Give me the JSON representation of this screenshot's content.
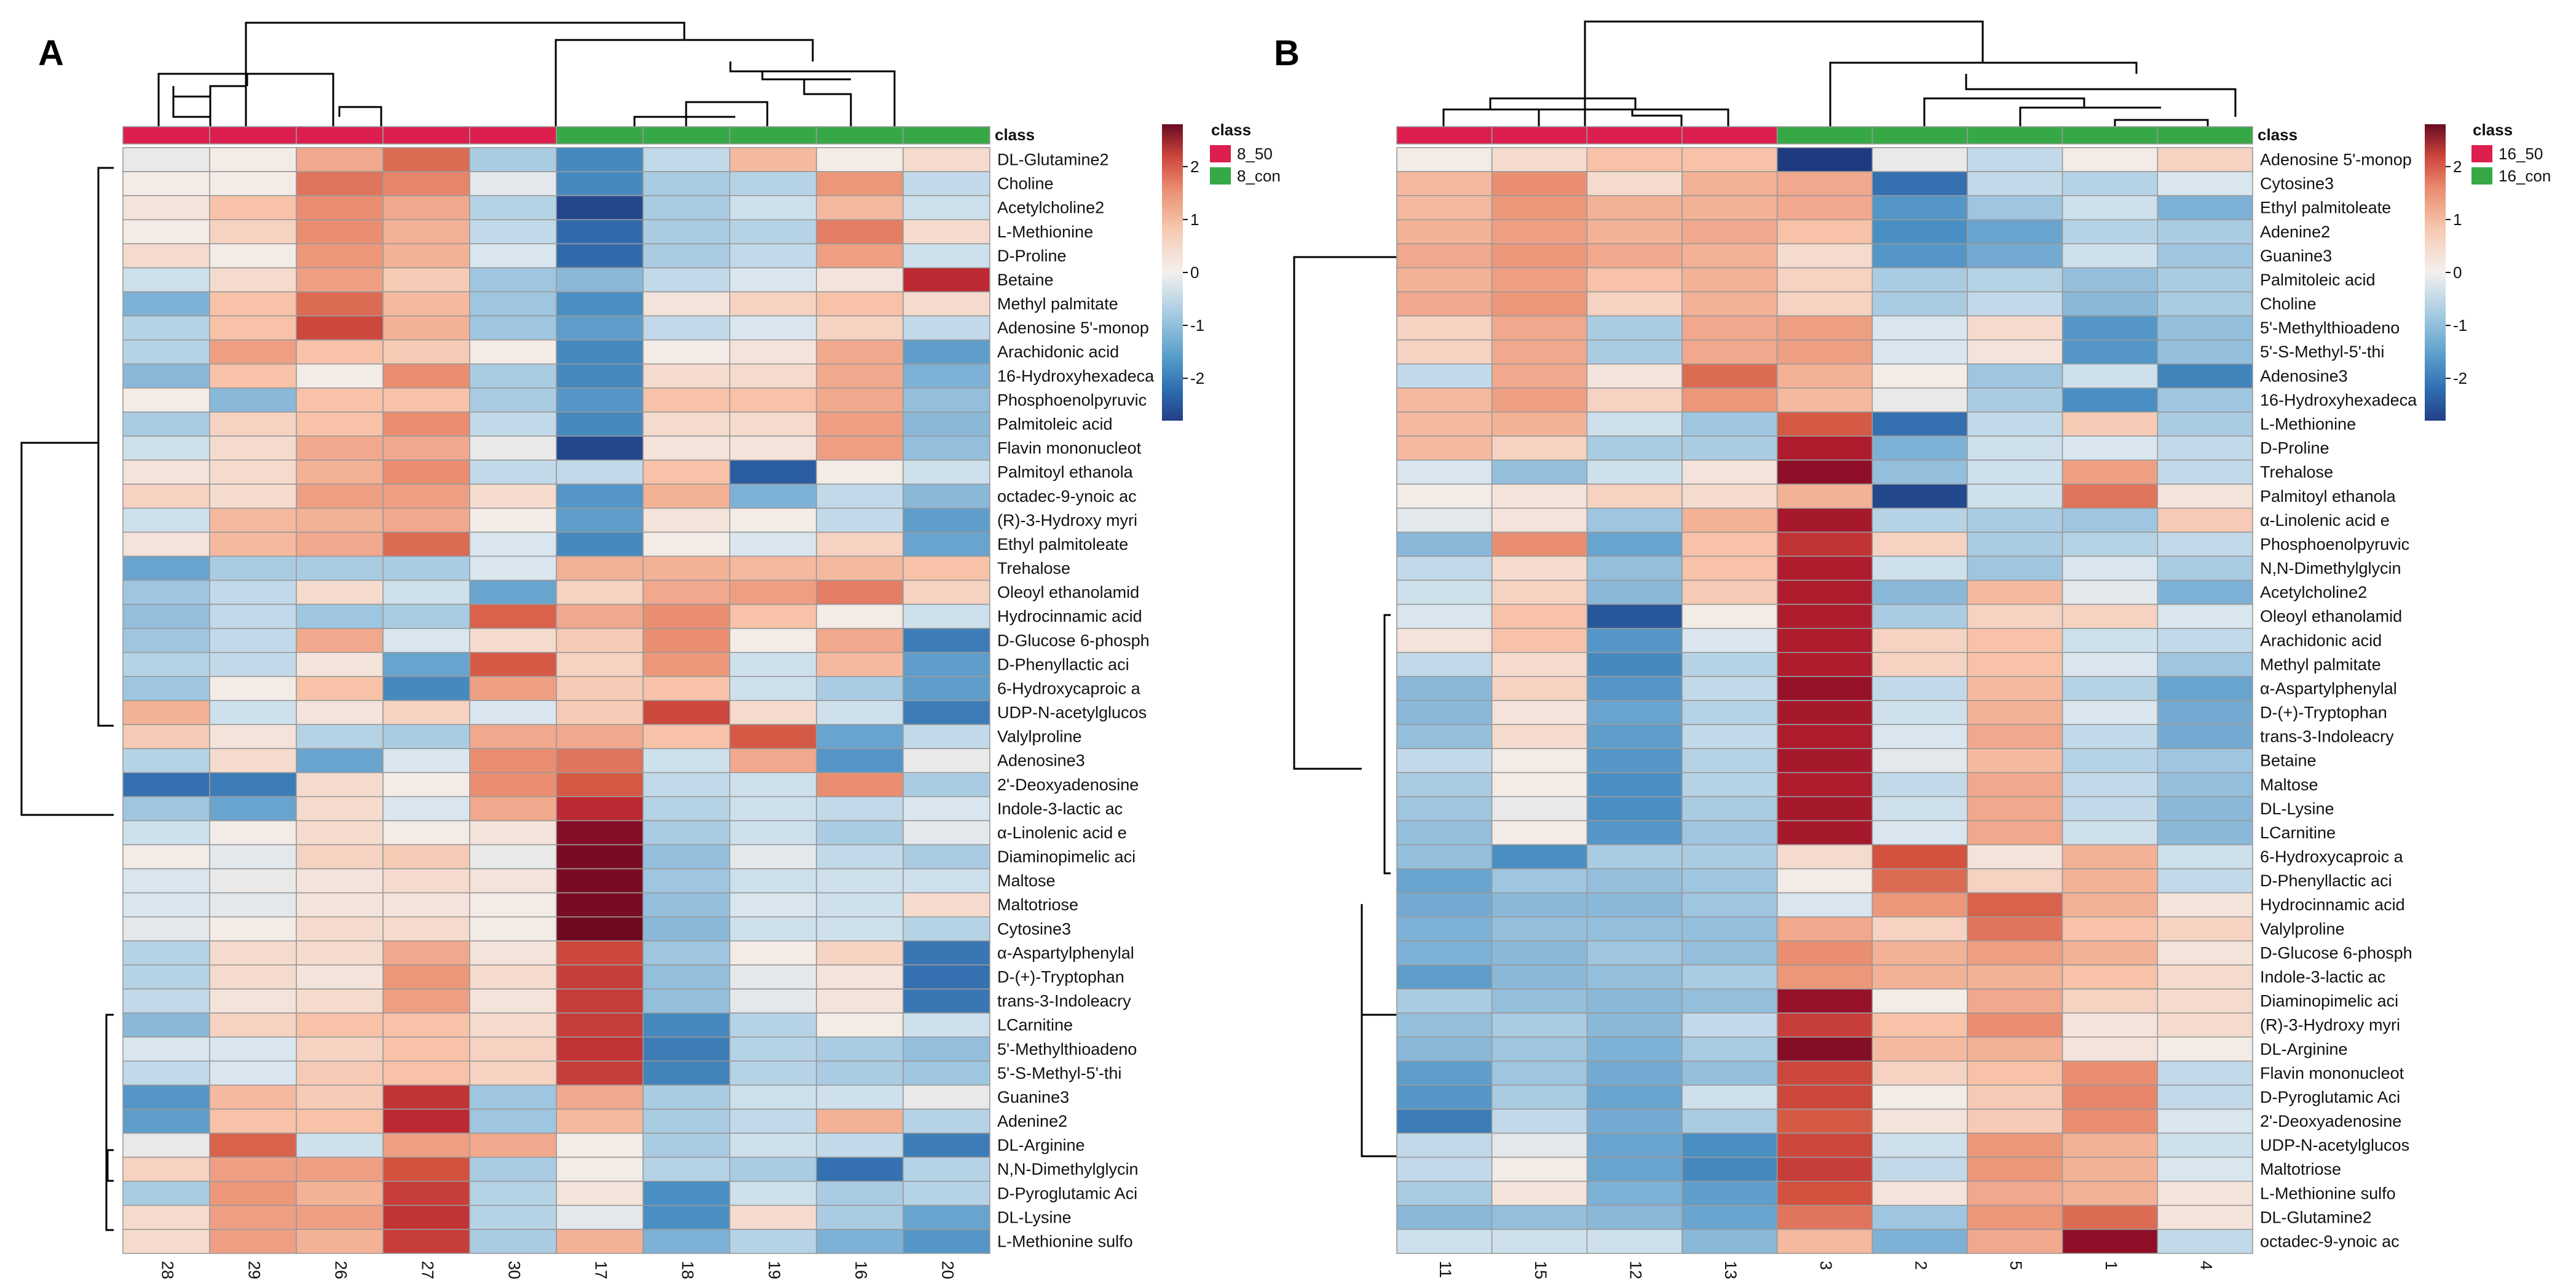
{
  "colors": {
    "scale": [
      "#233f87",
      "#2f6fb2",
      "#5a9fcb",
      "#a6cbe2",
      "#e8eef3",
      "#f7cbb4",
      "#ea8e71",
      "#ce463d",
      "#a8142b",
      "#690b21"
    ],
    "class_8_50": "#dc1f4e",
    "class_8_con": "#36a946",
    "class_16_50": "#dc1f4e",
    "class_16_con": "#36a946",
    "grid": "#9a9a9a"
  },
  "chart_data": [
    {
      "type": "heatmap",
      "panel": "A",
      "class_label": "class",
      "columns": [
        "28",
        "29",
        "26",
        "27",
        "30",
        "17",
        "18",
        "19",
        "16",
        "20"
      ],
      "column_classes": [
        "8_50",
        "8_50",
        "8_50",
        "8_50",
        "8_50",
        "8_con",
        "8_con",
        "8_con",
        "8_con",
        "8_con"
      ],
      "rows": [
        "DL-Glutamine2",
        "Choline",
        "Acetylcholine2",
        "L-Methionine",
        "D-Proline",
        "Betaine",
        "Methyl palmitate",
        "Adenosine 5'-monop",
        "Arachidonic acid",
        "16-Hydroxyhexadeca",
        "Phosphoenolpyruvic",
        "Palmitoleic acid",
        "Flavin mononucleot",
        "Palmitoyl ethanola",
        "octadec-9-ynoic ac",
        "(R)-3-Hydroxy myri",
        "Ethyl palmitoleate",
        "Trehalose",
        "Oleoyl ethanolamid",
        "Hydrocinnamic acid",
        "D-Glucose 6-phosph",
        "D-Phenyllactic aci",
        "6-Hydroxycaproic a",
        "UDP-N-acetylglucos",
        "Valylproline",
        "Adenosine3",
        "2'-Deoxyadenosine",
        "Indole-3-lactic ac",
        "α-Linolenic acid e",
        "Diaminopimelic aci",
        "Maltose",
        "Maltotriose",
        "Cytosine3",
        "α-Aspartylphenylal",
        "D-(+)-Tryptophan",
        "trans-3-Indoleacry",
        "LCarnitine",
        "5'-Methylthioadeno",
        "5'-S-Methyl-5'-thi",
        "Guanine3",
        "Adenine2",
        "DL-Arginine",
        "N,N-Dimethylglycin",
        "D-Pyroglutamic Aci",
        "DL-Lysine",
        "L-Methionine sulfo"
      ],
      "values": [
        [
          0.0,
          0.1,
          0.9,
          1.6,
          -0.6,
          -1.6,
          -0.4,
          0.7,
          0.1,
          0.3
        ],
        [
          0.1,
          0.1,
          1.5,
          1.3,
          -0.1,
          -1.6,
          -0.6,
          -0.5,
          1.1,
          -0.4
        ],
        [
          0.2,
          0.6,
          1.2,
          0.9,
          -0.5,
          -2.6,
          -0.6,
          -0.3,
          0.7,
          -0.3
        ],
        [
          0.1,
          0.4,
          1.2,
          0.8,
          -0.4,
          -2.1,
          -0.6,
          -0.5,
          1.4,
          0.3
        ],
        [
          0.3,
          0.1,
          1.1,
          0.8,
          -0.2,
          -2.1,
          -0.6,
          -0.4,
          1.0,
          -0.3
        ],
        [
          -0.3,
          0.3,
          1.0,
          0.5,
          -0.7,
          -0.9,
          -0.4,
          -0.2,
          0.2,
          2.3
        ],
        [
          -1.0,
          0.6,
          1.6,
          0.7,
          -0.7,
          -1.5,
          0.2,
          0.4,
          0.6,
          0.3
        ],
        [
          -0.5,
          0.6,
          2.0,
          0.8,
          -0.7,
          -1.3,
          -0.4,
          -0.2,
          0.4,
          -0.4
        ],
        [
          -0.5,
          1.0,
          0.6,
          0.5,
          0.1,
          -1.6,
          0.1,
          0.2,
          0.9,
          -1.3
        ],
        [
          -0.9,
          0.6,
          0.1,
          1.2,
          -0.6,
          -1.6,
          0.3,
          0.3,
          0.9,
          -1.0
        ],
        [
          0.1,
          -0.9,
          0.6,
          0.6,
          -0.6,
          -1.4,
          0.6,
          0.6,
          0.9,
          -0.8
        ],
        [
          -0.6,
          0.4,
          0.6,
          1.2,
          -0.4,
          -1.6,
          0.3,
          0.3,
          1.0,
          -0.9
        ],
        [
          -0.3,
          0.3,
          0.9,
          0.9,
          0.0,
          -2.6,
          0.2,
          0.2,
          1.0,
          -0.8
        ],
        [
          0.2,
          0.3,
          0.8,
          1.2,
          -0.4,
          -0.4,
          0.6,
          -2.3,
          0.1,
          -0.3
        ],
        [
          0.4,
          0.3,
          1.0,
          1.0,
          0.3,
          -1.4,
          0.8,
          -1.0,
          -0.4,
          -0.9
        ],
        [
          -0.3,
          0.7,
          0.8,
          0.9,
          0.1,
          -1.3,
          0.2,
          0.1,
          -0.4,
          -1.3
        ],
        [
          0.2,
          0.7,
          0.9,
          1.6,
          -0.2,
          -1.6,
          0.1,
          -0.2,
          0.4,
          -1.2
        ],
        [
          -1.2,
          -0.6,
          -0.6,
          -0.6,
          -0.2,
          0.8,
          0.8,
          0.7,
          0.7,
          0.6
        ],
        [
          -0.7,
          -0.4,
          0.3,
          -0.3,
          -1.2,
          0.4,
          0.9,
          1.0,
          1.4,
          0.4
        ],
        [
          -0.8,
          -0.4,
          -0.7,
          -0.6,
          1.7,
          0.9,
          1.2,
          0.6,
          0.1,
          -0.3
        ],
        [
          -0.7,
          -0.4,
          0.9,
          -0.2,
          0.3,
          0.5,
          1.2,
          0.1,
          0.9,
          -1.8
        ],
        [
          -0.5,
          -0.4,
          0.2,
          -1.2,
          1.8,
          0.4,
          1.1,
          -0.3,
          0.7,
          -1.3
        ],
        [
          -0.7,
          0.1,
          0.6,
          -1.6,
          1.0,
          0.5,
          0.6,
          -0.3,
          -0.6,
          -1.3
        ],
        [
          0.8,
          -0.3,
          0.2,
          0.4,
          -0.2,
          0.5,
          2.0,
          0.3,
          -0.3,
          -1.8
        ],
        [
          0.5,
          0.2,
          -0.5,
          -0.6,
          0.9,
          0.9,
          0.6,
          1.8,
          -1.2,
          -0.4
        ],
        [
          -0.5,
          0.3,
          -1.2,
          -0.2,
          1.2,
          1.5,
          -0.3,
          0.9,
          -1.4,
          0.0
        ],
        [
          -2.0,
          -1.8,
          0.3,
          0.1,
          1.2,
          1.8,
          -0.4,
          -0.3,
          1.2,
          -0.6
        ],
        [
          -0.7,
          -1.2,
          0.3,
          -0.2,
          0.9,
          2.3,
          -0.5,
          -0.3,
          -0.4,
          -0.2
        ],
        [
          -0.3,
          0.1,
          0.3,
          0.1,
          0.2,
          3.0,
          -0.6,
          -0.3,
          -0.6,
          -0.1
        ],
        [
          0.1,
          -0.1,
          0.4,
          0.5,
          0.0,
          3.1,
          -0.8,
          -0.1,
          -0.4,
          -0.6
        ],
        [
          -0.2,
          0.0,
          0.2,
          0.3,
          0.2,
          3.1,
          -0.7,
          -0.3,
          -0.3,
          -0.3
        ],
        [
          -0.2,
          -0.1,
          0.2,
          0.2,
          0.1,
          3.1,
          -0.8,
          -0.2,
          -0.3,
          0.3
        ],
        [
          -0.1,
          0.1,
          0.3,
          0.3,
          0.1,
          3.2,
          -0.9,
          -0.3,
          -0.3,
          -0.5
        ],
        [
          -0.5,
          0.3,
          0.3,
          0.9,
          0.2,
          2.0,
          -0.7,
          0.1,
          0.4,
          -1.9
        ],
        [
          -0.5,
          0.3,
          0.2,
          1.1,
          0.3,
          2.1,
          -0.8,
          -0.1,
          0.2,
          -2.0
        ],
        [
          -0.4,
          0.2,
          0.3,
          1.0,
          0.2,
          2.1,
          -0.8,
          -0.1,
          0.2,
          -1.9
        ],
        [
          -0.9,
          0.4,
          0.6,
          0.6,
          0.3,
          2.1,
          -1.6,
          -0.5,
          0.1,
          -0.3
        ],
        [
          -0.2,
          -0.2,
          0.4,
          0.6,
          0.4,
          2.2,
          -1.8,
          -0.5,
          -0.6,
          -0.8
        ],
        [
          -0.4,
          -0.2,
          0.5,
          0.6,
          0.4,
          2.1,
          -1.7,
          -0.5,
          -0.6,
          -0.7
        ],
        [
          -1.4,
          0.7,
          0.5,
          2.2,
          -0.7,
          0.9,
          -0.6,
          -0.3,
          -0.3,
          0.0
        ],
        [
          -1.3,
          0.6,
          0.6,
          2.3,
          -0.7,
          0.7,
          -0.6,
          -0.4,
          0.8,
          -0.5
        ],
        [
          0.0,
          1.7,
          -0.3,
          1.0,
          0.9,
          0.1,
          -0.6,
          -0.3,
          -0.4,
          -1.8
        ],
        [
          0.4,
          1.0,
          1.0,
          1.9,
          -0.6,
          0.1,
          -0.5,
          -0.6,
          -2.0,
          -0.5
        ],
        [
          -0.6,
          1.1,
          0.8,
          2.1,
          -0.5,
          0.2,
          -1.5,
          -0.3,
          -0.6,
          -0.5
        ],
        [
          0.3,
          1.0,
          1.0,
          2.2,
          -0.5,
          -0.1,
          -1.5,
          0.3,
          -0.6,
          -1.2
        ],
        [
          0.3,
          1.0,
          0.8,
          2.1,
          -0.6,
          0.8,
          -1.0,
          -0.5,
          -1.0,
          -1.4
        ]
      ],
      "color_range": [
        -2.8,
        2.8
      ],
      "legend_ticks": [
        2,
        1,
        0,
        -1,
        -2
      ],
      "legend_classes": [
        "8_50",
        "8_con"
      ],
      "legend_title": "class"
    },
    {
      "type": "heatmap",
      "panel": "B",
      "class_label": "class",
      "columns": [
        "11",
        "15",
        "12",
        "13",
        "3",
        "2",
        "5",
        "1",
        "4"
      ],
      "column_classes": [
        "16_50",
        "16_50",
        "16_50",
        "16_50",
        "16_con",
        "16_con",
        "16_con",
        "16_con",
        "16_con"
      ],
      "rows": [
        "Adenosine 5'-monop",
        "Cytosine3",
        "Ethyl palmitoleate",
        "Adenine2",
        "Guanine3",
        "Palmitoleic acid",
        "Choline",
        "5'-Methylthioadeno",
        "5'-S-Methyl-5'-thi",
        "Adenosine3",
        "16-Hydroxyhexadeca",
        "L-Methionine",
        "D-Proline",
        "Trehalose",
        "Palmitoyl ethanola",
        "α-Linolenic acid e",
        "Phosphoenolpyruvic",
        "N,N-Dimethylglycin",
        "Acetylcholine2",
        "Oleoyl ethanolamid",
        "Arachidonic acid",
        "Methyl palmitate",
        "α-Aspartylphenylal",
        "D-(+)-Tryptophan",
        "trans-3-Indoleacry",
        "Betaine",
        "Maltose",
        "DL-Lysine",
        "LCarnitine",
        "6-Hydroxycaproic a",
        "D-Phenyllactic aci",
        "Hydrocinnamic acid",
        "Valylproline",
        "D-Glucose 6-phosph",
        "Indole-3-lactic ac",
        "Diaminopimelic aci",
        "(R)-3-Hydroxy myri",
        "DL-Arginine",
        "Flavin mononucleot",
        "D-Pyroglutamic Aci",
        "2'-Deoxyadenosine",
        "UDP-N-acetylglucos",
        "Maltotriose",
        "L-Methionine sulfo",
        "DL-Glutamine2",
        "octadec-9-ynoic ac"
      ],
      "values": [
        [
          0.1,
          0.3,
          0.6,
          0.6,
          -3.2,
          0.0,
          -0.4,
          0.1,
          0.4
        ],
        [
          0.7,
          1.2,
          0.3,
          0.8,
          0.9,
          -2.0,
          -0.4,
          -0.5,
          -0.2
        ],
        [
          0.7,
          1.1,
          0.8,
          0.8,
          0.9,
          -1.4,
          -0.7,
          -0.3,
          -1.0
        ],
        [
          0.8,
          1.0,
          0.8,
          0.9,
          0.6,
          -1.5,
          -1.2,
          -0.5,
          -0.6
        ],
        [
          0.9,
          1.1,
          0.9,
          0.8,
          0.3,
          -1.4,
          -1.1,
          -0.3,
          -0.7
        ],
        [
          0.8,
          1.0,
          0.6,
          0.8,
          0.4,
          -0.6,
          -0.5,
          -0.8,
          -0.6
        ],
        [
          0.9,
          1.1,
          0.4,
          0.8,
          0.4,
          -0.6,
          -0.4,
          -0.9,
          -0.6
        ],
        [
          0.4,
          0.9,
          -0.6,
          0.9,
          1.0,
          -0.2,
          0.3,
          -1.4,
          -0.8
        ],
        [
          0.4,
          0.9,
          -0.6,
          0.9,
          1.0,
          -0.2,
          0.2,
          -1.4,
          -0.8
        ],
        [
          -0.4,
          0.9,
          0.2,
          1.6,
          0.8,
          0.1,
          -0.7,
          -0.3,
          -1.7
        ],
        [
          0.7,
          1.0,
          0.4,
          1.1,
          0.7,
          0.0,
          -0.6,
          -1.5,
          -0.7
        ],
        [
          0.7,
          0.8,
          -0.3,
          -0.7,
          1.8,
          -2.0,
          -0.4,
          0.5,
          -0.6
        ],
        [
          0.7,
          0.4,
          -0.6,
          -0.6,
          2.5,
          -1.0,
          -0.3,
          -0.2,
          -0.4
        ],
        [
          -0.2,
          -0.8,
          -0.3,
          0.2,
          2.9,
          -0.8,
          -0.3,
          1.0,
          -0.4
        ],
        [
          0.1,
          0.2,
          0.4,
          0.3,
          0.8,
          -2.6,
          -0.3,
          1.5,
          0.2
        ],
        [
          -0.1,
          0.2,
          -0.7,
          0.8,
          2.6,
          -0.5,
          -0.6,
          -0.7,
          0.5
        ],
        [
          -0.9,
          1.2,
          -1.2,
          0.6,
          2.2,
          0.4,
          -0.6,
          -0.5,
          -0.4
        ],
        [
          -0.4,
          0.3,
          -0.8,
          0.6,
          2.5,
          -0.3,
          -0.7,
          -0.2,
          -0.6
        ],
        [
          -0.3,
          0.4,
          -0.9,
          0.5,
          2.5,
          -0.9,
          0.7,
          -0.1,
          -1.0
        ],
        [
          -0.2,
          0.6,
          -2.4,
          0.1,
          2.5,
          -0.6,
          0.4,
          0.4,
          -0.2
        ],
        [
          0.2,
          0.6,
          -1.4,
          -0.2,
          2.5,
          0.4,
          0.6,
          -0.3,
          -0.4
        ],
        [
          -0.4,
          0.3,
          -1.6,
          -0.5,
          2.5,
          0.4,
          0.6,
          -0.2,
          -0.7
        ],
        [
          -0.9,
          0.4,
          -1.4,
          -0.4,
          2.8,
          -0.4,
          0.7,
          -0.5,
          -1.2
        ],
        [
          -0.9,
          0.2,
          -1.2,
          -0.5,
          2.6,
          -0.3,
          0.8,
          -0.2,
          -1.1
        ],
        [
          -0.8,
          0.3,
          -1.3,
          -0.4,
          2.5,
          -0.2,
          0.9,
          -0.4,
          -1.1
        ],
        [
          -0.4,
          0.1,
          -1.4,
          -0.5,
          2.6,
          -0.1,
          0.7,
          -0.5,
          -0.7
        ],
        [
          -0.6,
          0.1,
          -1.5,
          -0.5,
          2.5,
          -0.4,
          0.9,
          -0.4,
          -0.8
        ],
        [
          -0.7,
          0.0,
          -1.5,
          -0.6,
          2.6,
          -0.3,
          0.9,
          -0.4,
          -0.9
        ],
        [
          -0.8,
          0.1,
          -1.4,
          -0.7,
          2.6,
          -0.2,
          0.9,
          -0.3,
          -0.9
        ],
        [
          -0.8,
          -1.5,
          -0.6,
          -0.6,
          0.3,
          1.9,
          0.2,
          0.8,
          -0.3
        ],
        [
          -1.2,
          -0.7,
          -0.8,
          -0.7,
          0.1,
          1.6,
          0.4,
          0.8,
          -0.4
        ],
        [
          -1.1,
          -0.9,
          -0.9,
          -0.7,
          -0.2,
          1.1,
          1.7,
          0.8,
          0.2
        ],
        [
          -1.0,
          -0.8,
          -0.8,
          -0.8,
          0.9,
          0.4,
          1.5,
          0.6,
          0.4
        ],
        [
          -1.0,
          -0.9,
          -0.7,
          -0.8,
          1.2,
          0.8,
          1.0,
          0.8,
          0.2
        ],
        [
          -1.3,
          -0.9,
          -0.8,
          -0.6,
          1.1,
          0.8,
          0.8,
          0.6,
          0.3
        ],
        [
          -0.6,
          -0.8,
          -0.9,
          -0.8,
          2.8,
          0.1,
          0.9,
          0.4,
          0.3
        ],
        [
          -0.8,
          -0.6,
          -0.9,
          -0.4,
          2.1,
          0.6,
          1.2,
          0.2,
          0.3
        ],
        [
          -0.9,
          -0.7,
          -1.0,
          -0.6,
          3.0,
          0.7,
          0.8,
          0.2,
          0.1
        ],
        [
          -1.3,
          -0.7,
          -1.1,
          -0.8,
          2.0,
          0.4,
          0.6,
          1.2,
          -0.4
        ],
        [
          -1.4,
          -0.6,
          -1.2,
          -0.3,
          2.0,
          0.1,
          0.5,
          1.3,
          -0.4
        ],
        [
          -1.8,
          -0.4,
          -1.1,
          -0.6,
          1.8,
          0.2,
          0.5,
          1.2,
          -0.2
        ],
        [
          -0.4,
          -0.1,
          -1.2,
          -1.5,
          2.0,
          -0.3,
          1.1,
          0.8,
          -0.3
        ],
        [
          -0.4,
          0.1,
          -1.2,
          -1.6,
          2.1,
          -0.4,
          1.1,
          0.8,
          -0.2
        ],
        [
          -0.6,
          0.2,
          -1.0,
          -1.3,
          1.9,
          0.2,
          0.9,
          0.8,
          0.2
        ],
        [
          -0.9,
          -0.8,
          -0.9,
          -1.2,
          1.5,
          -0.7,
          1.1,
          1.6,
          0.2
        ],
        [
          -0.3,
          -0.3,
          -0.3,
          -0.9,
          0.7,
          -1.0,
          0.9,
          2.9,
          -0.4
        ]
      ],
      "color_range": [
        -2.8,
        2.8
      ],
      "legend_ticks": [
        2,
        1,
        0,
        -1,
        -2
      ],
      "legend_classes": [
        "16_50",
        "16_con"
      ],
      "legend_title": "class"
    }
  ]
}
